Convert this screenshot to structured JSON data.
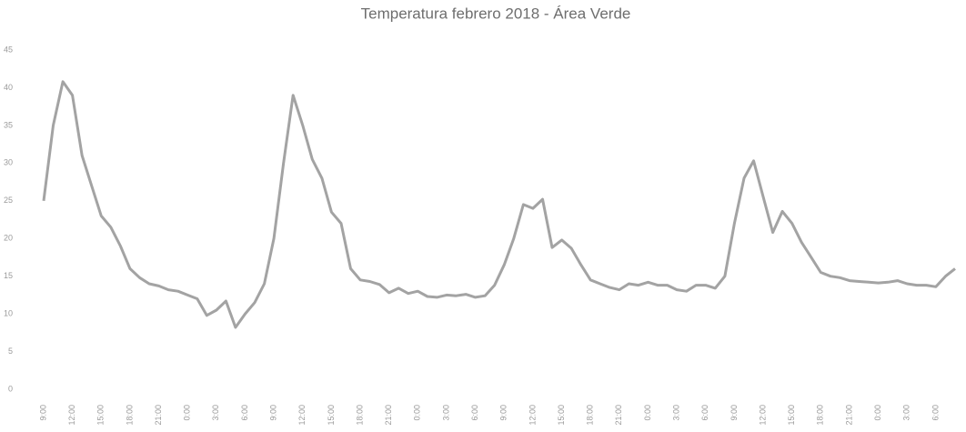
{
  "chart_data": {
    "type": "line",
    "title": "Temperatura febrero 2018 - Área Verde",
    "categories": [
      "9:00",
      null,
      null,
      "12:00",
      null,
      null,
      "15:00",
      null,
      null,
      "18:00",
      null,
      null,
      "21:00",
      null,
      null,
      "0:00",
      null,
      null,
      "3:00",
      null,
      null,
      "6:00",
      null,
      null,
      "9:00",
      null,
      null,
      "12:00",
      null,
      null,
      "15:00",
      null,
      null,
      "18:00",
      null,
      null,
      "21:00",
      null,
      null,
      "0:00",
      null,
      null,
      "3:00",
      null,
      null,
      "6:00",
      null,
      null,
      "9:00",
      null,
      null,
      "12:00",
      null,
      null,
      "15:00",
      null,
      null,
      "18:00",
      null,
      null,
      "21:00",
      null,
      null,
      "0:00",
      null,
      null,
      "3:00",
      null,
      null,
      "6:00",
      null,
      null,
      "9:00",
      null,
      null,
      "12:00",
      null,
      null,
      "15:00",
      null,
      null,
      "18:00",
      null,
      null,
      "21:00",
      null,
      null,
      "0:00",
      null,
      null,
      "3:00",
      null,
      null,
      "6:00",
      null,
      null
    ],
    "values": [
      25,
      35,
      40.8,
      39,
      31,
      27,
      23,
      21.5,
      19,
      16,
      14.8,
      14,
      13.7,
      13.2,
      13,
      12.5,
      12,
      9.8,
      10.5,
      11.7,
      8.2,
      10,
      11.5,
      14,
      20,
      30,
      39,
      35,
      30.5,
      28,
      23.5,
      22,
      16,
      14.5,
      14.3,
      13.9,
      12.8,
      13.4,
      12.7,
      13,
      12.3,
      12.2,
      12.5,
      12.4,
      12.6,
      12.2,
      12.4,
      13.8,
      16.5,
      20,
      24.5,
      24,
      25.2,
      18.8,
      19.8,
      18.7,
      16.5,
      14.5,
      14,
      13.5,
      13.2,
      14,
      13.8,
      14.2,
      13.8,
      13.8,
      13.2,
      13,
      13.8,
      13.8,
      13.4,
      15,
      22,
      28,
      30.3,
      25.5,
      20.8,
      23.6,
      22,
      19.5,
      17.5,
      15.5,
      15,
      14.8,
      14.4,
      14.3,
      14.2,
      14.1,
      14.2,
      14.4,
      14,
      13.8,
      13.8,
      13.6,
      15,
      16
    ],
    "color": "#a3a3a3",
    "ylim": [
      0,
      45
    ],
    "yticks": [
      0,
      5,
      10,
      15,
      20,
      25,
      30,
      35,
      40,
      45
    ],
    "grid": false
  }
}
